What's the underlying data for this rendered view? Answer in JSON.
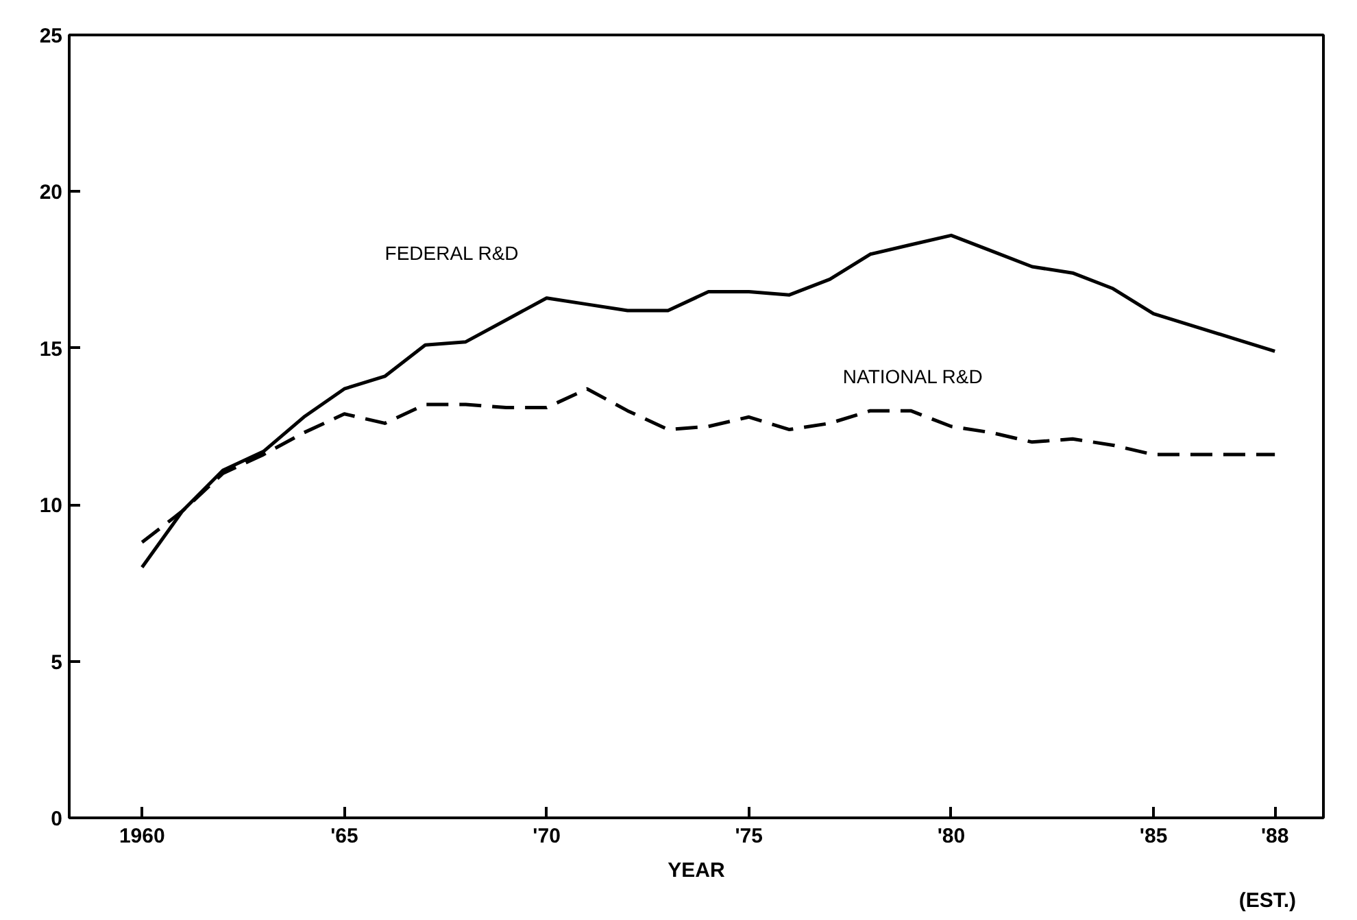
{
  "chart_data": {
    "type": "line",
    "xlabel": "YEAR",
    "x": [
      1960,
      1961,
      1962,
      1963,
      1964,
      1965,
      1966,
      1967,
      1968,
      1969,
      1970,
      1971,
      1972,
      1973,
      1974,
      1975,
      1976,
      1977,
      1978,
      1979,
      1980,
      1981,
      1982,
      1983,
      1984,
      1985,
      1986,
      1987,
      1988
    ],
    "series": [
      {
        "name": "FEDERAL R&D",
        "color": "#000000",
        "line_style": "solid",
        "values": [
          8.0,
          9.8,
          11.1,
          11.7,
          12.8,
          13.7,
          14.1,
          15.1,
          15.2,
          15.9,
          16.6,
          16.4,
          16.2,
          16.2,
          16.8,
          16.8,
          16.7,
          17.2,
          18.0,
          18.3,
          18.6,
          18.1,
          17.6,
          17.4,
          16.9,
          16.1,
          15.7,
          15.3,
          14.9
        ]
      },
      {
        "name": "NATIONAL R&D",
        "color": "#000000",
        "line_style": "dashed",
        "values": [
          8.8,
          9.8,
          11.0,
          11.6,
          12.3,
          12.9,
          12.6,
          13.2,
          13.2,
          13.1,
          13.1,
          13.7,
          13.0,
          12.4,
          12.5,
          12.8,
          12.4,
          12.6,
          13.0,
          13.0,
          12.5,
          12.3,
          12.0,
          12.1,
          11.9,
          11.6,
          11.6,
          11.6,
          11.6
        ]
      }
    ],
    "xlim": [
      1958.2,
      1989.2
    ],
    "xticks": [
      1960,
      {
        "value": 1965,
        "label": "'65"
      },
      {
        "value": 1970,
        "label": "'70"
      },
      {
        "value": 1975,
        "label": "'75"
      },
      {
        "value": 1980,
        "label": "'80"
      },
      {
        "value": 1985,
        "label": "'85"
      },
      {
        "value": 1988,
        "label": "'88"
      }
    ],
    "annotations": [
      "(EST.)"
    ],
    "ylim": [
      0,
      25
    ],
    "yticks": [
      0,
      5,
      10,
      15,
      20,
      25
    ],
    "grid": false
  }
}
